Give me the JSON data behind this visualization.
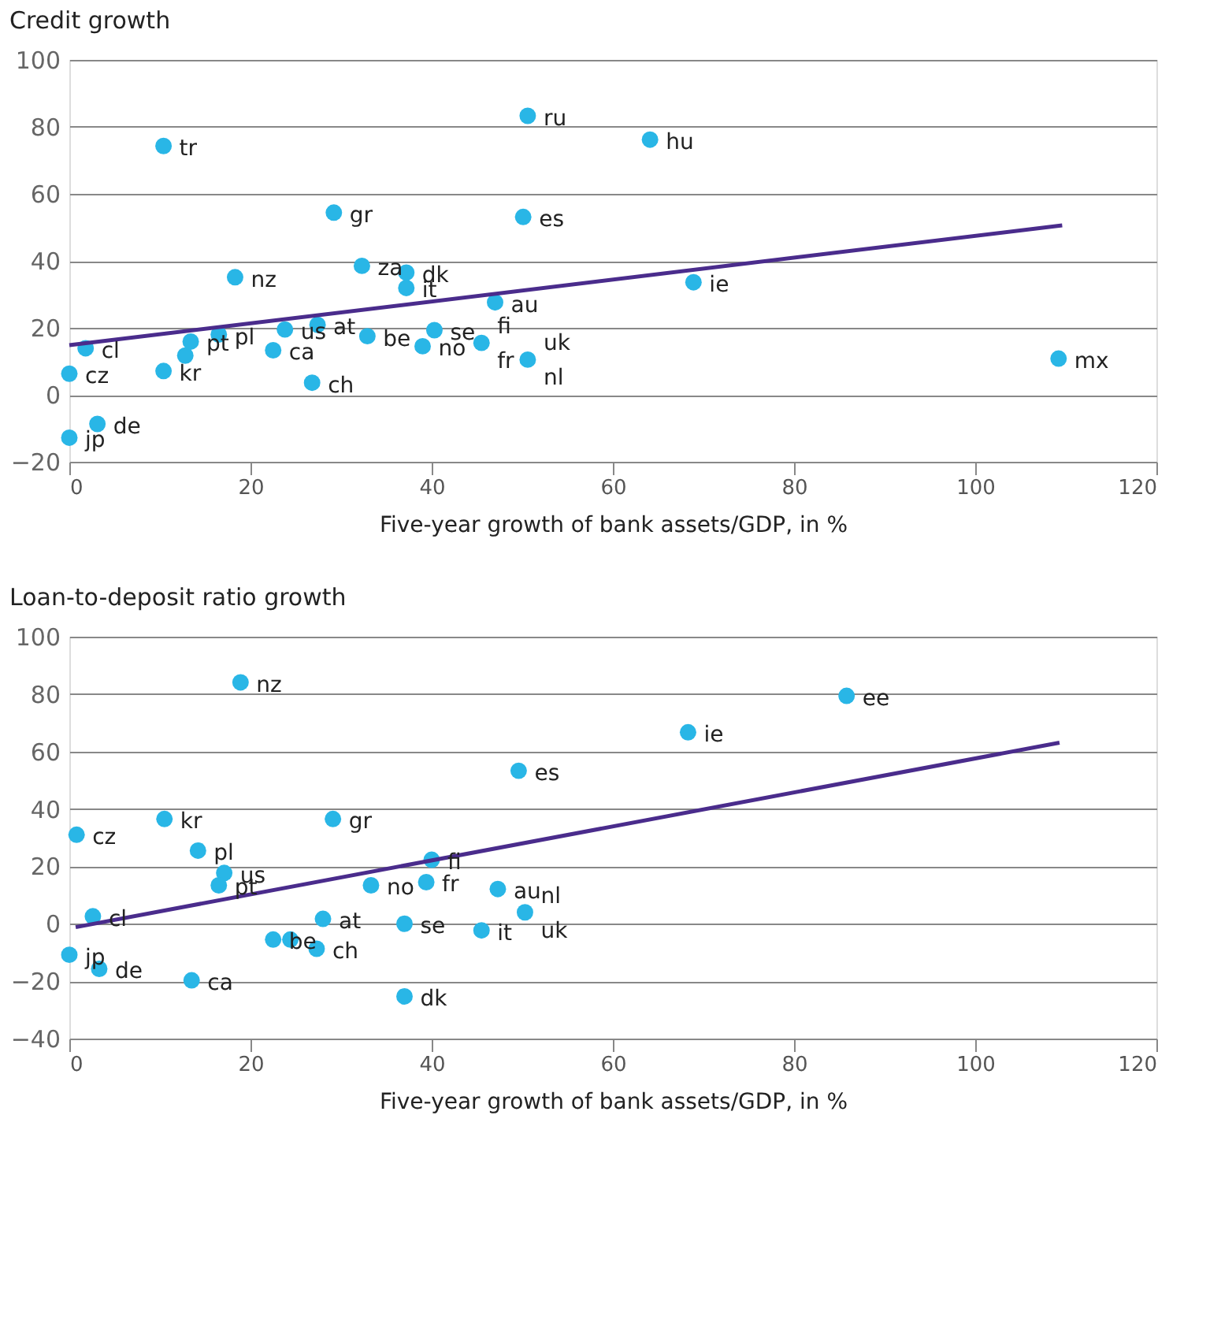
{
  "chart_data": [
    {
      "type": "scatter",
      "title": "Credit growth",
      "xlabel": "Five-year growth of bank assets/GDP, in %",
      "xlim": [
        0,
        120
      ],
      "xticks": [
        0,
        20,
        40,
        60,
        80,
        100,
        120
      ],
      "ylim": [
        -20,
        100
      ],
      "yticks": [
        -20,
        0,
        20,
        40,
        60,
        80,
        100
      ],
      "grid": "y",
      "series": [
        {
          "marker": "circle",
          "color": "#29b6e6",
          "x": [
            10.4,
            50.6,
            64.1,
            29.2,
            50.1,
            32.3,
            37.2,
            37.2,
            18.3,
            47.0,
            68.9,
            1.8,
            16.5,
            23.8,
            27.4,
            10.4,
            12.8,
            13.4,
            22.5,
            32.9,
            26.8,
            39.0,
            40.3,
            45.5,
            50.6,
            109.2,
            0,
            3.1,
            0
          ],
          "values": [
            74.3,
            83.3,
            76.2,
            54.4,
            53.1,
            38.5,
            36.5,
            31.9,
            35.1,
            27.6,
            33.6,
            13.9,
            18.0,
            19.5,
            20.9,
            7.1,
            11.7,
            15.9,
            13.3,
            17.5,
            3.6,
            14.5,
            19.3,
            15.5,
            10.5,
            10.8,
            6.3,
            -8.7,
            -12.8
          ]
        },
        {
          "type": "line",
          "color": "#4a2c8c",
          "x": [
            0,
            109.6
          ],
          "values": [
            14.8,
            50.6
          ]
        }
      ],
      "annotations": [
        {
          "text": "tr",
          "x": 10.4,
          "y": 74.3
        },
        {
          "text": "ru",
          "x": 50.6,
          "y": 83.3
        },
        {
          "text": "hu",
          "x": 64.1,
          "y": 76.2
        },
        {
          "text": "gr",
          "x": 29.2,
          "y": 54.4
        },
        {
          "text": "es",
          "x": 50.1,
          "y": 53.1
        },
        {
          "text": "za",
          "x": 32.3,
          "y": 38.5
        },
        {
          "text": "dk",
          "x": 37.2,
          "y": 36.5
        },
        {
          "text": "it",
          "x": 37.2,
          "y": 31.9
        },
        {
          "text": "nz",
          "x": 18.3,
          "y": 35.1
        },
        {
          "text": "au",
          "x": 47.0,
          "y": 27.6
        },
        {
          "text": "ie",
          "x": 68.9,
          "y": 33.6
        },
        {
          "text": "cl",
          "x": 1.8,
          "y": 13.9
        },
        {
          "text": "pl",
          "x": 16.5,
          "y": 18.0
        },
        {
          "text": "us",
          "x": 23.8,
          "y": 19.5
        },
        {
          "text": "at",
          "x": 27.4,
          "y": 20.9
        },
        {
          "text": "kr",
          "x": 10.4,
          "y": 7.1
        },
        {
          "text": "pt",
          "x": 13.4,
          "y": 15.9
        },
        {
          "text": "ca",
          "x": 22.5,
          "y": 13.3
        },
        {
          "text": "be",
          "x": 32.9,
          "y": 17.5
        },
        {
          "text": "ch",
          "x": 26.8,
          "y": 3.6
        },
        {
          "text": "no",
          "x": 39.0,
          "y": 14.5
        },
        {
          "text": "se",
          "x": 40.3,
          "y": 19.3
        },
        {
          "text": "fi",
          "x": 45.5,
          "y": 15.5
        },
        {
          "text": "fr",
          "x": 45.5,
          "y": 15.5
        },
        {
          "text": "uk",
          "x": 50.6,
          "y": 10.5
        },
        {
          "text": "nl",
          "x": 50.6,
          "y": 10.5
        },
        {
          "text": "mx",
          "x": 109.2,
          "y": 10.8
        },
        {
          "text": "cz",
          "x": 0,
          "y": 6.3
        },
        {
          "text": "de",
          "x": 3.1,
          "y": -8.7
        },
        {
          "text": "jp",
          "x": 0,
          "y": -12.8
        }
      ]
    },
    {
      "type": "scatter",
      "title": "Loan-to-deposit ratio growth",
      "xlabel": "Five-year growth of bank assets/GDP, in %",
      "xlim": [
        0,
        120
      ],
      "xticks": [
        0,
        20,
        40,
        60,
        80,
        100,
        120
      ],
      "ylim": [
        -40,
        100
      ],
      "yticks": [
        -40,
        -20,
        0,
        20,
        40,
        60,
        80,
        100
      ],
      "grid": "y",
      "series": [
        {
          "marker": "circle",
          "color": "#29b6e6",
          "x": [
            18.9,
            85.8,
            68.3,
            49.6,
            10.5,
            29.1,
            0.8,
            14.2,
            17.1,
            16.5,
            40.0,
            33.3,
            39.4,
            47.3,
            50.3,
            2.6,
            28.0,
            37.0,
            45.5,
            22.5,
            24.4,
            27.3,
            0,
            3.3,
            13.5,
            37.0
          ],
          "values": [
            84.1,
            79.4,
            66.7,
            53.3,
            36.5,
            36.5,
            31.0,
            25.5,
            17.7,
            13.4,
            22.3,
            13.4,
            14.5,
            12.1,
            4.0,
            2.6,
            1.7,
            0,
            -2.3,
            -5.5,
            -5.5,
            -8.7,
            -10.8,
            -15.7,
            -19.7,
            -25.3
          ]
        },
        {
          "type": "line",
          "color": "#4a2c8c",
          "x": [
            0.7,
            109.3
          ],
          "values": [
            -1.2,
            63.1
          ]
        }
      ],
      "annotations": [
        {
          "text": "nz",
          "x": 18.9,
          "y": 84.1
        },
        {
          "text": "ee",
          "x": 85.8,
          "y": 79.4
        },
        {
          "text": "ie",
          "x": 68.3,
          "y": 66.7
        },
        {
          "text": "es",
          "x": 49.6,
          "y": 53.3
        },
        {
          "text": "kr",
          "x": 10.5,
          "y": 36.5
        },
        {
          "text": "gr",
          "x": 29.1,
          "y": 36.5
        },
        {
          "text": "cz",
          "x": 0.8,
          "y": 31.0
        },
        {
          "text": "pl",
          "x": 14.2,
          "y": 25.5
        },
        {
          "text": "us",
          "x": 17.1,
          "y": 17.7
        },
        {
          "text": "pt",
          "x": 16.5,
          "y": 13.4
        },
        {
          "text": "fi",
          "x": 40.0,
          "y": 22.3
        },
        {
          "text": "no",
          "x": 33.3,
          "y": 13.4
        },
        {
          "text": "fr",
          "x": 39.4,
          "y": 14.5
        },
        {
          "text": "au",
          "x": 47.3,
          "y": 12.1
        },
        {
          "text": "nl",
          "x": 50.3,
          "y": 4.0
        },
        {
          "text": "uk",
          "x": 50.3,
          "y": 4.0
        },
        {
          "text": "cl",
          "x": 2.6,
          "y": 2.6
        },
        {
          "text": "at",
          "x": 28.0,
          "y": 1.7
        },
        {
          "text": "se",
          "x": 37.0,
          "y": 0
        },
        {
          "text": "it",
          "x": 45.5,
          "y": -2.3
        },
        {
          "text": "be",
          "x": 22.5,
          "y": -5.5
        },
        {
          "text": "ch",
          "x": 27.3,
          "y": -8.7
        },
        {
          "text": "jp",
          "x": 0,
          "y": -10.8
        },
        {
          "text": "de",
          "x": 3.3,
          "y": -15.7
        },
        {
          "text": "ca",
          "x": 13.5,
          "y": -19.7
        },
        {
          "text": "dk",
          "x": 37.0,
          "y": -25.3
        }
      ]
    }
  ]
}
